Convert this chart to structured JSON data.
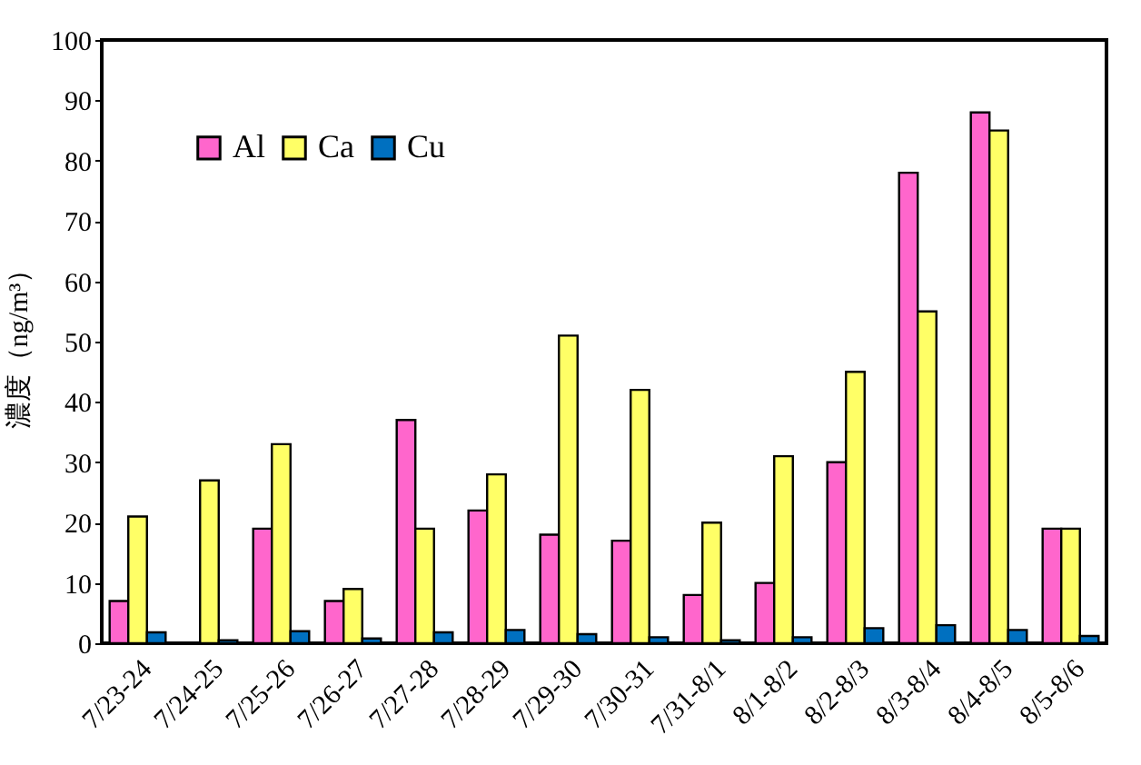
{
  "chart_data": {
    "type": "bar",
    "ylabel": "濃度（ng/m³）",
    "categories": [
      "7/23-24",
      "7/24-25",
      "7/25-26",
      "7/26-27",
      "7/27-28",
      "7/28-29",
      "7/29-30",
      "7/30-31",
      "7/31-8/1",
      "8/1-8/2",
      "8/2-8/3",
      "8/3-8/4",
      "8/4-8/5",
      "8/5-8/6"
    ],
    "series": [
      {
        "name": "Al",
        "color": "#ff66cc",
        "values": [
          7,
          null,
          19,
          7,
          37,
          22,
          18,
          17,
          8,
          10,
          30,
          78,
          88,
          19
        ]
      },
      {
        "name": "Ca",
        "color": "#ffff66",
        "values": [
          21,
          27,
          33,
          9,
          19,
          28,
          51,
          42,
          20,
          31,
          45,
          55,
          85,
          19
        ]
      },
      {
        "name": "Cu",
        "color": "#0070c0",
        "values": [
          1.8,
          0.5,
          2,
          0.8,
          1.8,
          2.2,
          1.5,
          1,
          0.5,
          1,
          2.5,
          3,
          2.2,
          1.2
        ]
      }
    ],
    "ylim": [
      0,
      100
    ],
    "yticks": [
      0,
      10,
      20,
      30,
      40,
      50,
      60,
      70,
      80,
      90,
      100
    ],
    "grid": false,
    "legend": "top left"
  }
}
